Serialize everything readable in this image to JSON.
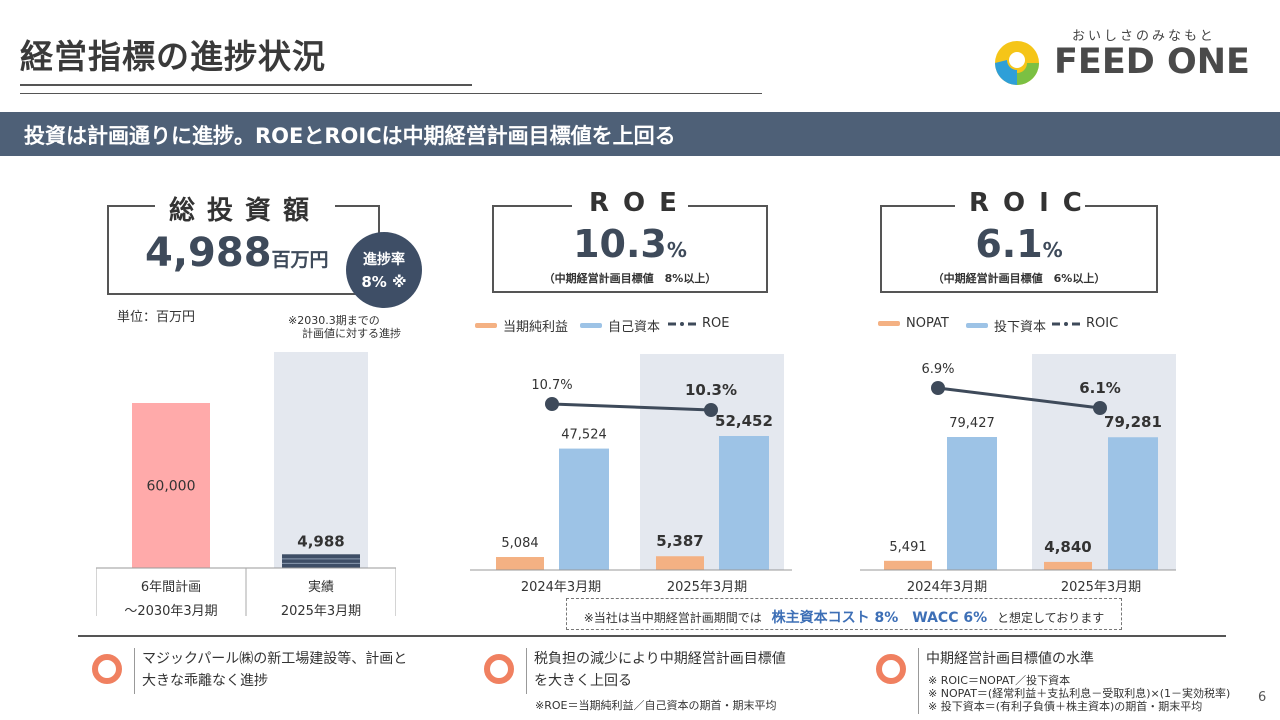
{
  "header": {
    "title": "経営指標の進捗状況",
    "logo_tagline": "おいしさのみなもと",
    "logo_text": "FEED ONE"
  },
  "banner": "投資は計画通りに進捗。ROEとROICは中期経営計画目標値を上回る",
  "investment": {
    "box_title": "総投資額",
    "value": "4,988",
    "unit": "百万円",
    "badge_line1": "進捗率",
    "badge_line2": "8% ※",
    "unit_label": "単位：百万円",
    "note_line1": "※2030.3期までの",
    "note_line2": "計画値に対する進捗",
    "col1_line1": "6年間計画",
    "col1_line2": "～2030年3月期",
    "col2_line1": "実績",
    "col2_line2": "2025年3月期"
  },
  "roe": {
    "box_title": "ROE",
    "value": "10.3",
    "unit": "%",
    "note": "（中期経営計画目標値　8%以上）",
    "legend": [
      "当期純利益",
      "自己資本",
      "ROE"
    ]
  },
  "roic": {
    "box_title": "ROIC",
    "value": "6.1",
    "unit": "%",
    "note": "（中期経営計画目標値　6%以上）",
    "legend": [
      "NOPAT",
      "投下資本",
      "ROIC"
    ]
  },
  "colors": {
    "orange": "#f4b183",
    "blue": "#9dc3e6",
    "pink": "#ffaaaa",
    "navy": "#3e4e66",
    "line": "#3e4a5a",
    "highlight": "#e4e8ef"
  },
  "chart_data": [
    {
      "type": "bar",
      "categories": [
        "6年間計画",
        "実績"
      ],
      "values": [
        60000,
        4988
      ],
      "labels": [
        "60,000",
        "4,988"
      ]
    },
    {
      "type": "bar",
      "categories": [
        "2024年3月期",
        "2025年3月期"
      ],
      "series": [
        {
          "name": "当期純利益",
          "values": [
            5084,
            5387
          ],
          "labels": [
            "5,084",
            "5,387"
          ]
        },
        {
          "name": "自己資本",
          "values": [
            47524,
            52452
          ],
          "labels": [
            "47,524",
            "52,452"
          ]
        },
        {
          "name": "ROE",
          "values": [
            10.7,
            10.3
          ],
          "labels": [
            "10.7%",
            "10.3%"
          ],
          "type": "line"
        }
      ]
    },
    {
      "type": "bar",
      "categories": [
        "2024年3月期",
        "2025年3月期"
      ],
      "series": [
        {
          "name": "NOPAT",
          "values": [
            5491,
            4840
          ],
          "labels": [
            "5,491",
            "4,840"
          ]
        },
        {
          "name": "投下資本",
          "values": [
            79427,
            79281
          ],
          "labels": [
            "79,427",
            "79,281"
          ]
        },
        {
          "name": "ROIC",
          "values": [
            6.9,
            6.1
          ],
          "labels": [
            "6.9%",
            "6.1%"
          ],
          "type": "line"
        }
      ]
    }
  ],
  "assumption": {
    "prefix": "※当社は当中期経営計画期間では",
    "highlight": "株主資本コスト 8%　WACC 6%",
    "suffix": "と想定しております"
  },
  "footer": {
    "item1_line1": "マジックパール㈱の新工場建設等、計画と",
    "item1_line2": "大きな乖離なく進捗",
    "item2_line1": "税負担の減少により中期経営計画目標値",
    "item2_line2": "を大きく上回る",
    "item2_note": "※ROE＝当期純利益／自己資本の期首・期末平均",
    "item3_title": "中期経営計画目標値の水準",
    "item3_note1": "※ ROIC＝NOPAT／投下資本",
    "item3_note2": "※ NOPAT＝(経常利益＋支払利息－受取利息)×(1－実効税率)",
    "item3_note3": "※ 投下資本＝(有利子負債＋株主資本)の期首・期末平均"
  },
  "page_number": "6"
}
